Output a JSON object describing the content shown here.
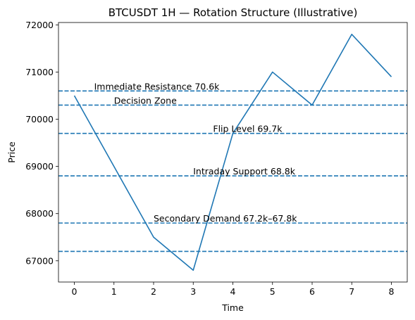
{
  "chart_data": {
    "type": "line",
    "title": "BTCUSDT 1H — Rotation Structure (Illustrative)",
    "xlabel": "Time",
    "ylabel": "Price",
    "x": [
      0,
      1,
      2,
      3,
      4,
      5,
      6,
      7,
      8
    ],
    "series": [
      {
        "values": [
          70500,
          69000,
          67500,
          66800,
          69700,
          71000,
          70300,
          71800,
          70900
        ],
        "color": "#1f77b4"
      }
    ],
    "xlim": [
      -0.4,
      8.4
    ],
    "ylim": [
      66550,
      72050
    ],
    "xticks": [
      0,
      1,
      2,
      3,
      4,
      5,
      6,
      7,
      8
    ],
    "yticks": [
      67000,
      68000,
      69000,
      70000,
      71000,
      72000
    ],
    "ytick_labels": [
      "67000",
      "68000",
      "69000",
      "70000",
      "71000",
      "72000"
    ],
    "grid": false,
    "hlines": [
      70600,
      70300,
      69700,
      68800,
      67800,
      67200
    ],
    "hline_style": "dashed",
    "hline_color": "#1f77b4",
    "annotations": [
      {
        "text": "Immediate Resistance 70.6k",
        "x": 0.5,
        "y": 70600
      },
      {
        "text": "Decision Zone",
        "x": 1.0,
        "y": 70300
      },
      {
        "text": "Flip Level 69.7k",
        "x": 3.5,
        "y": 69700
      },
      {
        "text": "Intraday Support 68.8k",
        "x": 3.0,
        "y": 68800
      },
      {
        "text": "Secondary Demand 67.2k–67.8k",
        "x": 2.0,
        "y": 67800
      }
    ]
  }
}
